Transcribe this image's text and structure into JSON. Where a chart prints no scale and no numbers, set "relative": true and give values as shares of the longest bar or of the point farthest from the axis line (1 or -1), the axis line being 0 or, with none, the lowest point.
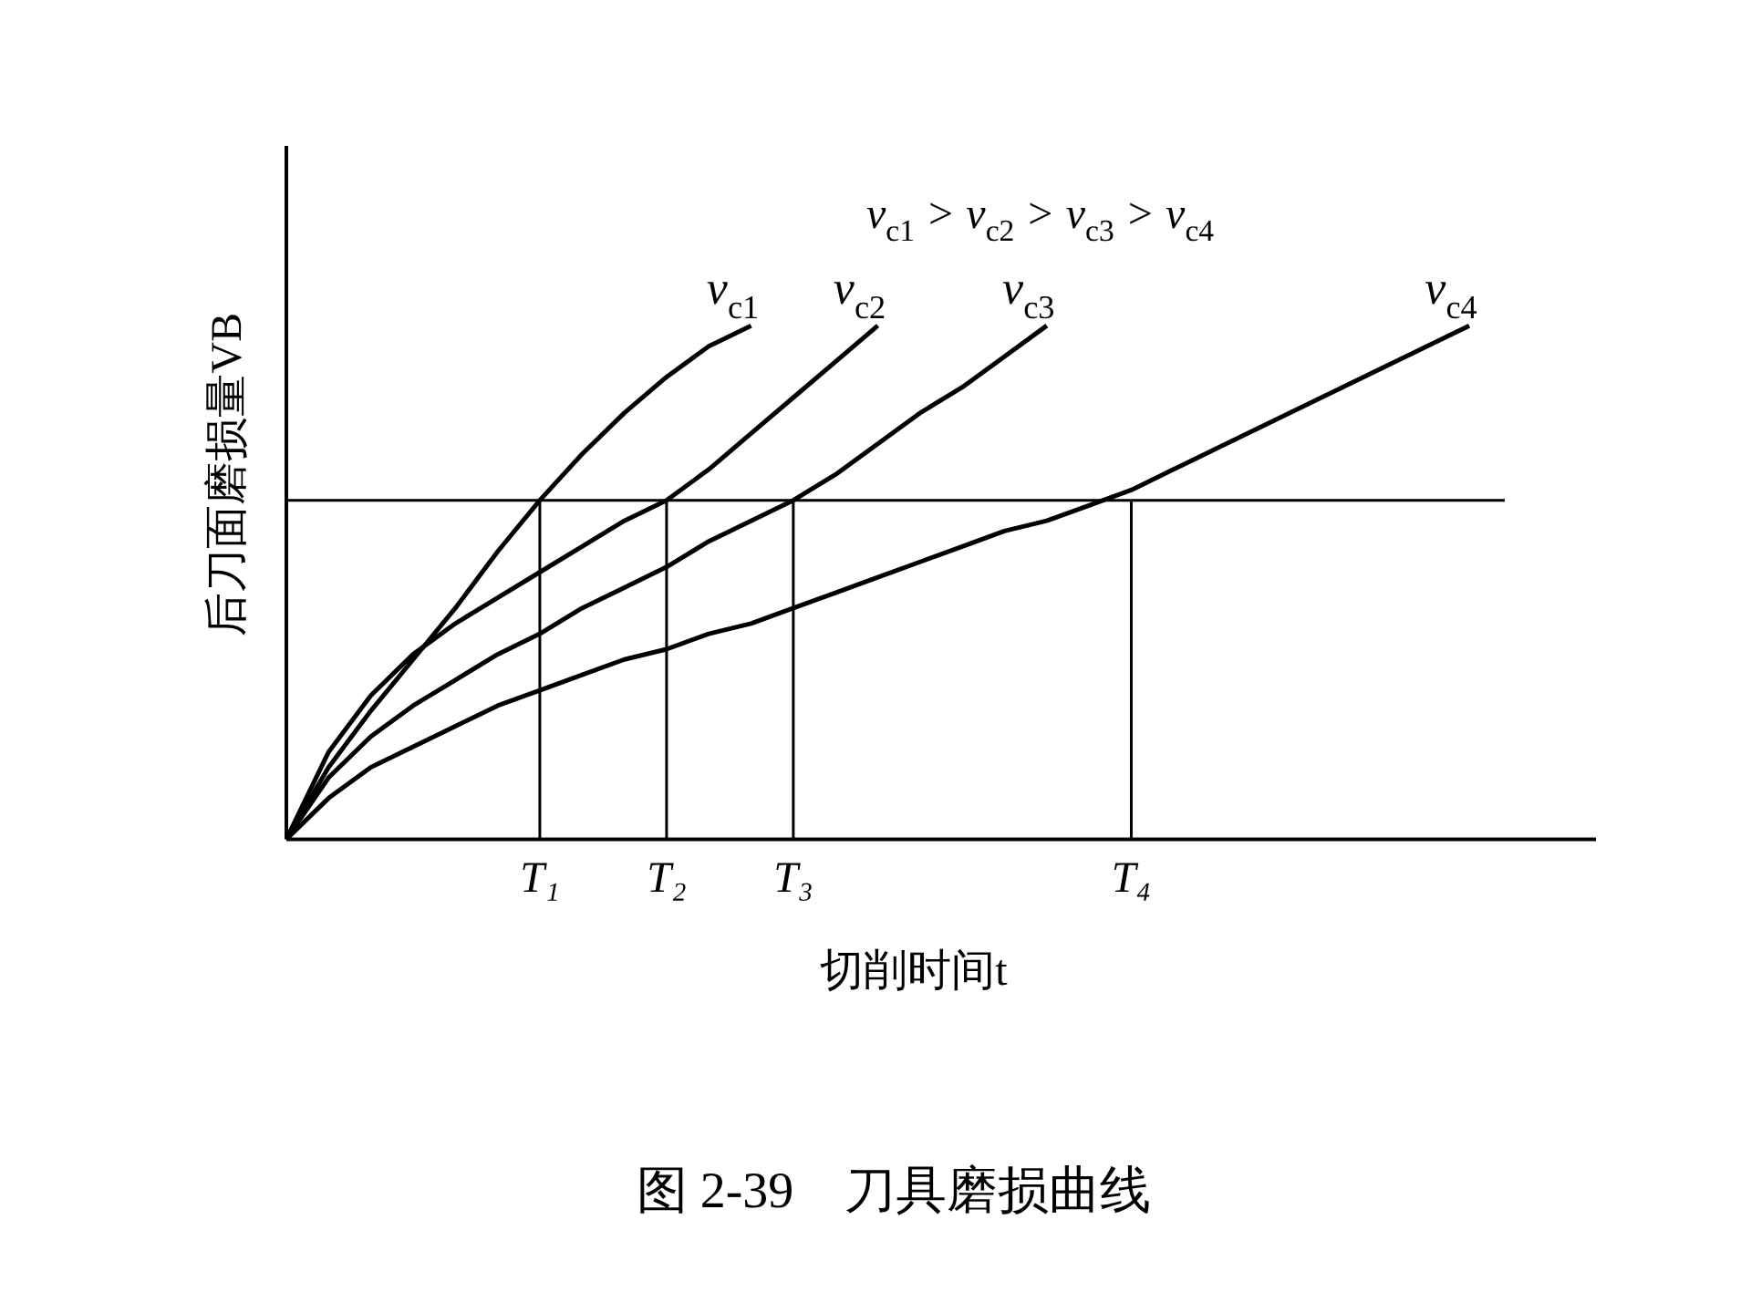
{
  "chart_data": {
    "type": "line",
    "relative": true,
    "title": "图 2-39　刀具磨损曲线",
    "xlabel": "切削时间t",
    "ylabel": "后刀面磨损量VB",
    "categories": [
      null,
      null,
      null,
      null,
      null,
      null,
      "T₁",
      null,
      null,
      "T₂",
      null,
      null,
      "T₃",
      null,
      null,
      null,
      null,
      null,
      null,
      null,
      "T₄",
      null,
      null,
      null,
      null,
      null,
      null,
      null,
      null,
      null,
      null,
      null
    ],
    "tick_labels": "x",
    "grid": false,
    "legend": false,
    "marker": "none",
    "line_style": "solid",
    "annotations": [
      "v$_{c1}$ > v$_{c2}$ > v$_{c3}$ > v$_{c4}$"
    ],
    "ref_lines": [
      {
        "axis": "y",
        "value": 0.66
      },
      {
        "axis": "x",
        "value": "T₁"
      },
      {
        "axis": "x",
        "value": "T₂"
      },
      {
        "axis": "x",
        "value": "T₃"
      },
      {
        "axis": "x",
        "value": "T₄"
      }
    ],
    "series": [
      {
        "name": "v$_{c1}$",
        "color": "#000000",
        "values": [
          0,
          0.14,
          0.25,
          0.35,
          0.45,
          0.56,
          0.66,
          0.75,
          0.83,
          0.9,
          0.96,
          1.0,
          null,
          null,
          null,
          null,
          null,
          null,
          null,
          null,
          null,
          null,
          null,
          null,
          null,
          null,
          null,
          null,
          null,
          null,
          null,
          null
        ]
      },
      {
        "name": "v$_{c2}$",
        "color": "#000000",
        "values": [
          0,
          0.17,
          0.28,
          0.36,
          0.42,
          0.47,
          0.52,
          0.57,
          0.62,
          0.66,
          0.72,
          0.79,
          0.86,
          0.93,
          1.0,
          null,
          null,
          null,
          null,
          null,
          null,
          null,
          null,
          null,
          null,
          null,
          null,
          null,
          null,
          null,
          null,
          null
        ]
      },
      {
        "name": "v$_{c3}$",
        "color": "#000000",
        "values": [
          0,
          0.12,
          0.2,
          0.26,
          0.31,
          0.36,
          0.4,
          0.45,
          0.49,
          0.53,
          0.58,
          0.62,
          0.66,
          0.71,
          0.77,
          0.83,
          0.88,
          0.94,
          1.0,
          null,
          null,
          null,
          null,
          null,
          null,
          null,
          null,
          null,
          null,
          null,
          null,
          null
        ]
      },
      {
        "name": "v$_{c4}$",
        "color": "#000000",
        "values": [
          0,
          0.08,
          0.14,
          0.18,
          0.22,
          0.26,
          0.29,
          0.32,
          0.35,
          0.37,
          0.4,
          0.42,
          0.45,
          0.48,
          0.51,
          0.54,
          0.57,
          0.6,
          0.62,
          0.65,
          0.68,
          0.72,
          0.76,
          0.8,
          0.84,
          0.88,
          0.92,
          0.96,
          1.0,
          null,
          null,
          null
        ]
      }
    ]
  }
}
